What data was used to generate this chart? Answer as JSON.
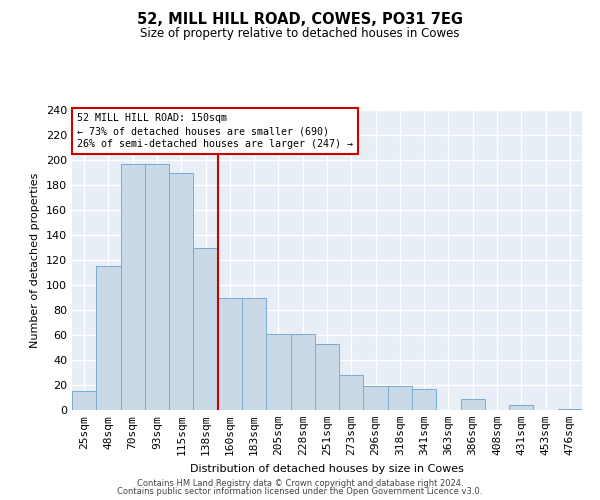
{
  "title": "52, MILL HILL ROAD, COWES, PO31 7EG",
  "subtitle": "Size of property relative to detached houses in Cowes",
  "xlabel": "Distribution of detached houses by size in Cowes",
  "ylabel": "Number of detached properties",
  "bar_labels": [
    "25sqm",
    "48sqm",
    "70sqm",
    "93sqm",
    "115sqm",
    "138sqm",
    "160sqm",
    "183sqm",
    "205sqm",
    "228sqm",
    "251sqm",
    "273sqm",
    "296sqm",
    "318sqm",
    "341sqm",
    "363sqm",
    "386sqm",
    "408sqm",
    "431sqm",
    "453sqm",
    "476sqm"
  ],
  "bar_heights": [
    15,
    115,
    197,
    197,
    190,
    130,
    90,
    90,
    61,
    61,
    53,
    28,
    19,
    19,
    17,
    0,
    9,
    0,
    4,
    0,
    1
  ],
  "bar_color": "#c9d9e8",
  "bar_edgecolor": "#7aabce",
  "vline_color": "#cc0000",
  "annotation_title": "52 MILL HILL ROAD: 150sqm",
  "annotation_line1": "← 73% of detached houses are smaller (690)",
  "annotation_line2": "26% of semi-detached houses are larger (247) →",
  "annotation_box_edgecolor": "#cc0000",
  "ylim": [
    0,
    240
  ],
  "yticks": [
    0,
    20,
    40,
    60,
    80,
    100,
    120,
    140,
    160,
    180,
    200,
    220,
    240
  ],
  "background_color": "#e8eef5",
  "grid_color": "#ffffff",
  "footer_line1": "Contains HM Land Registry data © Crown copyright and database right 2024.",
  "footer_line2": "Contains public sector information licensed under the Open Government Licence v3.0."
}
